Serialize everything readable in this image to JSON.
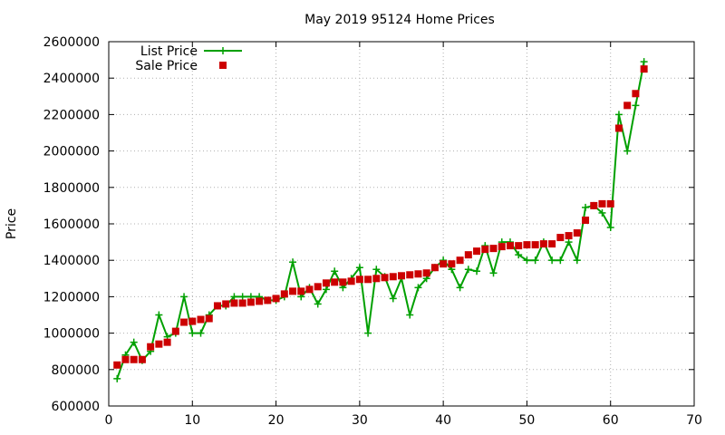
{
  "chart_data": {
    "type": "line",
    "title": "May 2019 95124 Home Prices",
    "xlabel": "",
    "ylabel": "Price",
    "xlim": [
      0,
      70
    ],
    "ylim": [
      600000,
      2600000
    ],
    "xticks": [
      0,
      10,
      20,
      30,
      40,
      50,
      60,
      70
    ],
    "yticks": [
      600000,
      800000,
      1000000,
      1200000,
      1400000,
      1600000,
      1800000,
      2000000,
      2200000,
      2400000,
      2600000
    ],
    "grid": true,
    "legend_position": "top-left",
    "x": [
      1,
      2,
      3,
      4,
      5,
      6,
      7,
      8,
      9,
      10,
      11,
      12,
      13,
      14,
      15,
      16,
      17,
      18,
      19,
      20,
      21,
      22,
      23,
      24,
      25,
      26,
      27,
      28,
      29,
      30,
      31,
      32,
      33,
      34,
      35,
      36,
      37,
      38,
      39,
      40,
      41,
      42,
      43,
      44,
      45,
      46,
      47,
      48,
      49,
      50,
      51,
      52,
      53,
      54,
      55,
      56,
      57,
      58,
      59,
      60,
      61,
      62,
      63,
      64
    ],
    "series": [
      {
        "name": "List Price",
        "style": "line-plus",
        "color": "#00a000",
        "values": [
          750000,
          880000,
          950000,
          850000,
          900000,
          1100000,
          980000,
          1000000,
          1200000,
          1000000,
          1000000,
          1100000,
          1150000,
          1150000,
          1200000,
          1200000,
          1200000,
          1200000,
          1180000,
          1180000,
          1200000,
          1390000,
          1200000,
          1250000,
          1160000,
          1240000,
          1340000,
          1250000,
          1300000,
          1360000,
          1000000,
          1350000,
          1310000,
          1190000,
          1300000,
          1100000,
          1250000,
          1300000,
          1360000,
          1400000,
          1350000,
          1250000,
          1350000,
          1340000,
          1480000,
          1330000,
          1500000,
          1500000,
          1430000,
          1400000,
          1400000,
          1500000,
          1400000,
          1400000,
          1500000,
          1400000,
          1690000,
          1700000,
          1660000,
          1580000,
          2200000,
          2000000,
          2250000,
          2490000
        ]
      },
      {
        "name": "Sale Price",
        "style": "points-square",
        "color": "#cc0000",
        "values": [
          825000,
          855000,
          855000,
          855000,
          925000,
          940000,
          950000,
          1010000,
          1060000,
          1065000,
          1075000,
          1080000,
          1150000,
          1160000,
          1165000,
          1165000,
          1170000,
          1175000,
          1180000,
          1190000,
          1215000,
          1230000,
          1230000,
          1240000,
          1255000,
          1275000,
          1280000,
          1280000,
          1285000,
          1295000,
          1295000,
          1300000,
          1305000,
          1310000,
          1315000,
          1320000,
          1325000,
          1330000,
          1360000,
          1380000,
          1380000,
          1400000,
          1430000,
          1450000,
          1460000,
          1465000,
          1475000,
          1480000,
          1480000,
          1485000,
          1485000,
          1490000,
          1490000,
          1525000,
          1535000,
          1550000,
          1620000,
          1700000,
          1710000,
          1710000,
          2125000,
          2250000,
          2315000,
          2450000
        ]
      }
    ]
  }
}
